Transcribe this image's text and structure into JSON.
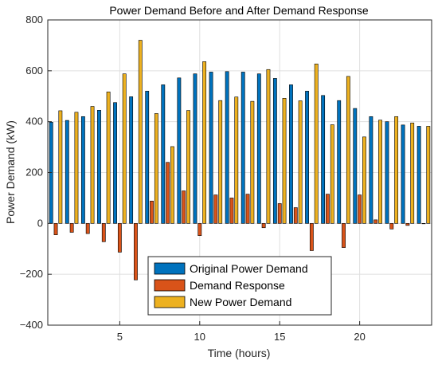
{
  "chart_data": {
    "type": "bar",
    "title": "Power Demand Before and After Demand Response",
    "xlabel": "Time (hours)",
    "ylabel": "Power Demand (kW)",
    "xlim": [
      0.5,
      24.5
    ],
    "ylim": [
      -400,
      800
    ],
    "x_ticks": [
      5,
      10,
      15,
      20
    ],
    "y_ticks": [
      -400,
      -200,
      0,
      200,
      400,
      600,
      800
    ],
    "grid": true,
    "legend_position": "bottom-center",
    "categories": [
      1,
      2,
      3,
      4,
      5,
      6,
      7,
      8,
      9,
      10,
      11,
      12,
      13,
      14,
      15,
      16,
      17,
      18,
      19,
      20,
      21,
      22,
      23,
      24
    ],
    "series": [
      {
        "name": "Original Power Demand",
        "color": "#0072BD",
        "values": [
          398,
          405,
          420,
          445,
          475,
          498,
          520,
          545,
          572,
          588,
          595,
          597,
          595,
          588,
          570,
          545,
          520,
          503,
          483,
          452,
          420,
          400,
          387,
          382
        ]
      },
      {
        "name": "Demand Response",
        "color": "#D95319",
        "values": [
          -45,
          -35,
          -40,
          -72,
          -113,
          -222,
          88,
          240,
          128,
          -48,
          112,
          100,
          115,
          -17,
          78,
          62,
          -107,
          115,
          -95,
          112,
          14,
          -22,
          -8,
          0
        ]
      },
      {
        "name": "New Power Demand",
        "color": "#EDB120",
        "values": [
          443,
          437,
          460,
          517,
          588,
          720,
          432,
          302,
          444,
          636,
          483,
          497,
          480,
          605,
          492,
          482,
          627,
          388,
          578,
          340,
          406,
          420,
          395,
          382
        ]
      }
    ]
  }
}
